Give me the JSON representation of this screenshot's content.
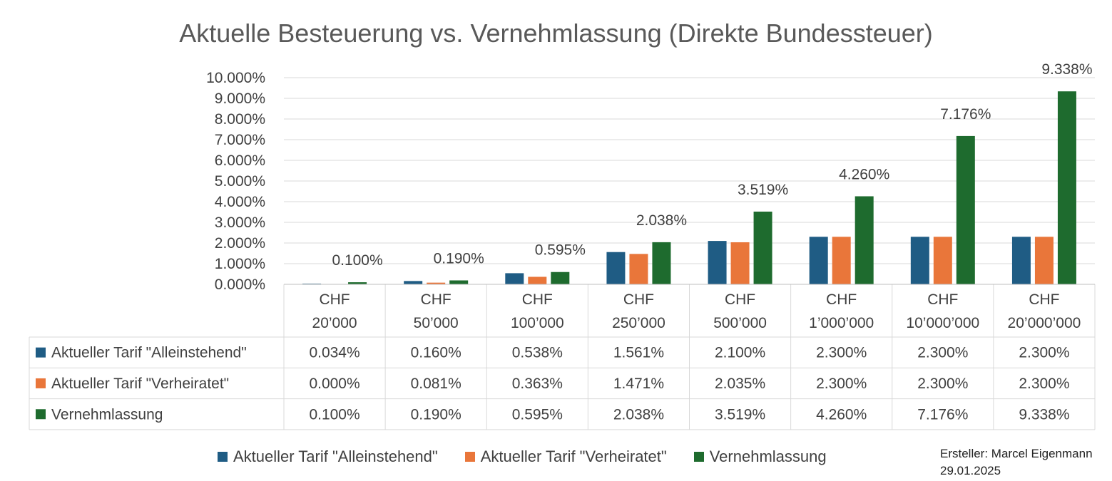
{
  "chart_data": {
    "type": "bar",
    "title": "Aktuelle Besteuerung vs. Vernehmlassung (Direkte Bundessteuer)",
    "categories": [
      [
        "CHF",
        "20’000"
      ],
      [
        "CHF",
        "50’000"
      ],
      [
        "CHF",
        "100’000"
      ],
      [
        "CHF",
        "250’000"
      ],
      [
        "CHF",
        "500’000"
      ],
      [
        "CHF",
        "1’000’000"
      ],
      [
        "CHF",
        "10’000’000"
      ],
      [
        "CHF",
        "20’000’000"
      ]
    ],
    "series": [
      {
        "name": "Aktueller Tarif \"Alleinstehend\"",
        "color": "#1f5c84",
        "values": [
          0.034,
          0.16,
          0.538,
          1.561,
          2.1,
          2.3,
          2.3,
          2.3
        ]
      },
      {
        "name": "Aktueller Tarif \"Verheiratet\"",
        "color": "#e9763a",
        "values": [
          0.0,
          0.081,
          0.363,
          1.471,
          2.035,
          2.3,
          2.3,
          2.3
        ]
      },
      {
        "name": "Vernehmlassung",
        "color": "#1e6b2e",
        "values": [
          0.1,
          0.19,
          0.595,
          2.038,
          3.519,
          4.26,
          7.176,
          9.338
        ]
      }
    ],
    "data_labels_series": "Vernehmlassung",
    "ylim": [
      0,
      10
    ],
    "yticks": [
      "0.000%",
      "1.000%",
      "2.000%",
      "3.000%",
      "4.000%",
      "5.000%",
      "6.000%",
      "7.000%",
      "8.000%",
      "9.000%",
      "10.000%"
    ],
    "grid": true,
    "legend_position": "bottom",
    "data_table": true
  },
  "author": {
    "line1": "Ersteller: Marcel Eigenmann",
    "line2": "29.01.2025"
  }
}
